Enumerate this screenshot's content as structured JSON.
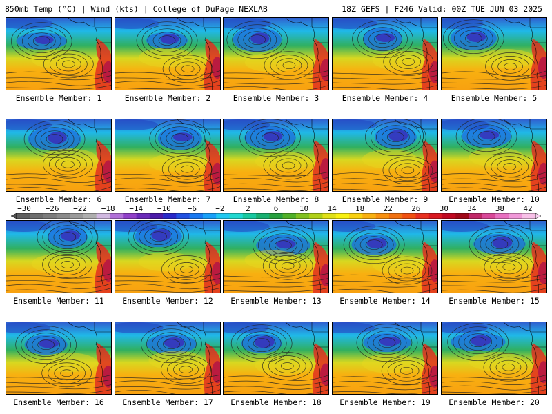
{
  "header": {
    "left_text": "850mb Temp (°C) | Wind (kts) | College of DuPage NEXLAB",
    "right_text": "18Z GEFS | F246 Valid: 00Z TUE JUN 03 2025"
  },
  "member_label_prefix": "Ensemble Member:",
  "members": [
    1,
    2,
    3,
    4,
    5,
    6,
    7,
    8,
    9,
    10,
    11,
    12,
    13,
    14,
    15,
    16,
    17,
    18,
    19,
    20
  ],
  "colorbar": {
    "labels": [
      "−30",
      "−26",
      "−22",
      "−18",
      "−14",
      "−10",
      "−6",
      "−2",
      "2",
      "6",
      "10",
      "14",
      "18",
      "22",
      "26",
      "30",
      "34",
      "38",
      "42"
    ],
    "colors": [
      "#606060",
      "#6e6e6e",
      "#7c7c7c",
      "#8a8a8a",
      "#9a9a9a",
      "#aeaeae",
      "#d0b8e0",
      "#b070d8",
      "#9040c8",
      "#6a2ab8",
      "#4a1aa8",
      "#2828c8",
      "#2050e0",
      "#1878f0",
      "#18a0f8",
      "#20c8f0",
      "#20d8d0",
      "#18c8a0",
      "#18b070",
      "#28a040",
      "#50b028",
      "#80c020",
      "#b0d018",
      "#e0e018",
      "#f8f010",
      "#f8d010",
      "#f8b010",
      "#f89010",
      "#f07010",
      "#f05010",
      "#e83020",
      "#d81820",
      "#c00820",
      "#a00818",
      "#c02868",
      "#d84898",
      "#e870c0",
      "#f098d8",
      "#f8c0e8"
    ]
  }
}
